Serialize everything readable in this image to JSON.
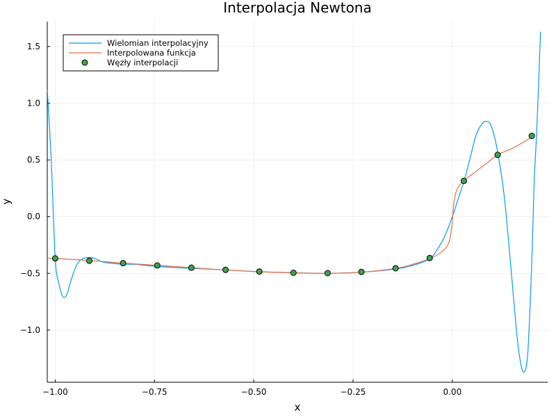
{
  "chart_data": {
    "type": "line",
    "title": "Interpolacja Newtona",
    "xlabel": "x",
    "ylabel": "y",
    "xlim": [
      -1.02,
      0.24
    ],
    "ylim": [
      -1.46,
      1.72
    ],
    "grid": true,
    "legend_position": "top-left",
    "x_ticks": [
      -1.0,
      -0.75,
      -0.5,
      -0.25,
      0.0
    ],
    "x_tick_labels": [
      "−1.00",
      "−0.75",
      "−0.50",
      "−0.25",
      "0.00"
    ],
    "y_ticks": [
      -1.0,
      -0.5,
      0.0,
      0.5,
      1.0,
      1.5
    ],
    "y_tick_labels": [
      "−1.0",
      "−0.5",
      "0.0",
      "0.5",
      "1.0",
      "1.5"
    ],
    "series": [
      {
        "name": "Wielomian interpolacyjny",
        "kind": "line",
        "color": "#009af9",
        "x": [
          -1.02,
          -1.01,
          -1.0,
          -0.99,
          -0.98,
          -0.97,
          -0.96,
          -0.945,
          -0.93,
          -0.915,
          -0.9,
          -0.88,
          -0.86,
          -0.83,
          -0.8,
          -0.74,
          -0.66,
          -0.57,
          -0.49,
          -0.4,
          -0.32,
          -0.23,
          -0.14,
          -0.09,
          -0.057,
          -0.04,
          -0.02,
          0.0,
          0.015,
          0.03,
          0.045,
          0.06,
          0.075,
          0.085,
          0.095,
          0.105,
          0.115,
          0.13,
          0.145,
          0.16,
          0.17,
          0.18,
          0.19,
          0.2,
          0.206,
          0.212,
          0.218,
          0.222
        ],
        "y": [
          1.12,
          0.5,
          -0.37,
          -0.6,
          -0.71,
          -0.68,
          -0.56,
          -0.42,
          -0.37,
          -0.36,
          -0.37,
          -0.4,
          -0.41,
          -0.42,
          -0.42,
          -0.44,
          -0.455,
          -0.47,
          -0.485,
          -0.495,
          -0.5,
          -0.49,
          -0.46,
          -0.42,
          -0.37,
          -0.3,
          -0.18,
          0.0,
          0.16,
          0.32,
          0.52,
          0.72,
          0.82,
          0.84,
          0.82,
          0.72,
          0.55,
          0.2,
          -0.35,
          -0.95,
          -1.25,
          -1.37,
          -1.2,
          -0.4,
          0.3,
          0.72,
          1.25,
          1.63
        ]
      },
      {
        "name": "Interpolowana funkcja",
        "kind": "line",
        "color": "#e26f46",
        "x": [
          -1.02,
          -0.92,
          -0.83,
          -0.74,
          -0.66,
          -0.57,
          -0.49,
          -0.4,
          -0.32,
          -0.23,
          -0.14,
          -0.09,
          -0.057,
          -0.03,
          -0.015,
          -0.008,
          -0.004,
          0.0,
          0.003,
          0.008,
          0.015,
          0.03,
          0.06,
          0.09,
          0.114,
          0.15,
          0.19,
          0.2
        ],
        "y": [
          -0.365,
          -0.385,
          -0.41,
          -0.43,
          -0.45,
          -0.47,
          -0.485,
          -0.495,
          -0.5,
          -0.49,
          -0.455,
          -0.41,
          -0.37,
          -0.32,
          -0.27,
          -0.22,
          -0.15,
          -0.05,
          0.1,
          0.2,
          0.26,
          0.32,
          0.4,
          0.48,
          0.545,
          0.6,
          0.68,
          0.71
        ]
      },
      {
        "name": "Węzły interpolacji",
        "kind": "scatter",
        "color": "#3da44d",
        "x": [
          -1.0,
          -0.914,
          -0.829,
          -0.743,
          -0.657,
          -0.571,
          -0.486,
          -0.4,
          -0.314,
          -0.229,
          -0.143,
          -0.057,
          0.029,
          0.114,
          0.2
        ],
        "y": [
          -0.368,
          -0.389,
          -0.41,
          -0.43,
          -0.45,
          -0.469,
          -0.484,
          -0.495,
          -0.498,
          -0.487,
          -0.455,
          -0.365,
          0.315,
          0.545,
          0.712
        ]
      }
    ]
  }
}
